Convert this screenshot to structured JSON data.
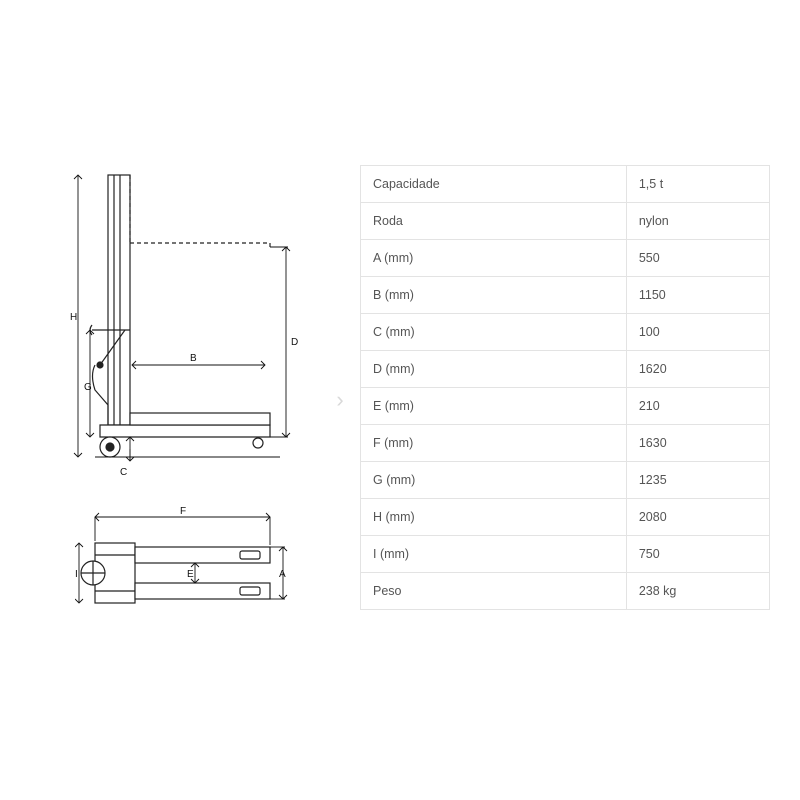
{
  "table": {
    "border_color": "#e3e3e3",
    "text_color": "#555555",
    "font_size": 12.5,
    "background": "#ffffff",
    "rows": [
      {
        "label": "Capacidade",
        "value": "1,5 t"
      },
      {
        "label": "Roda",
        "value": "nylon"
      },
      {
        "label": "A (mm)",
        "value": "550"
      },
      {
        "label": "B (mm)",
        "value": "1150"
      },
      {
        "label": "C (mm)",
        "value": "100"
      },
      {
        "label": "D (mm)",
        "value": "1620"
      },
      {
        "label": "E (mm)",
        "value": "210"
      },
      {
        "label": "F (mm)",
        "value": "1630"
      },
      {
        "label": "G (mm)",
        "value": "1235"
      },
      {
        "label": "H (mm)",
        "value": "2080"
      },
      {
        "label": "I (mm)",
        "value": "750"
      },
      {
        "label": "Peso",
        "value": "238 kg"
      }
    ]
  },
  "diagram": {
    "stroke_color": "#222222",
    "stroke_width": 1.2,
    "dash_pattern": "4 3",
    "labels": {
      "H": "H",
      "D": "D",
      "G": "G",
      "B": "B",
      "C": "C",
      "F": "F",
      "I": "I",
      "A": "A",
      "E": "E"
    }
  },
  "nav": {
    "chevron": "›"
  }
}
